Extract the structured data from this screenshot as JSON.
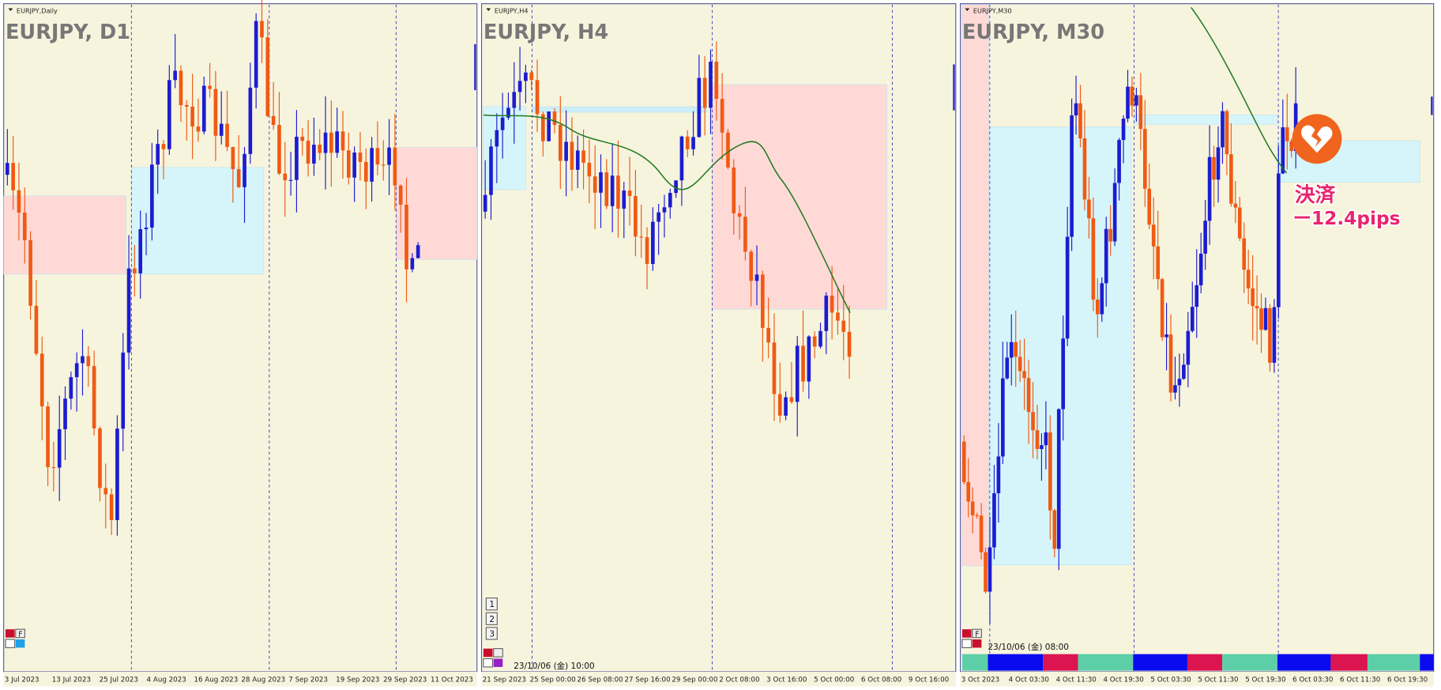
{
  "panels": [
    {
      "symbol_label": "EURJPY,Daily",
      "title": "EURJPY, D1",
      "button_label": "F",
      "time_labels": [
        "3 Jul 2023",
        "13 Jul 2023",
        "25 Jul 2023",
        "4 Aug 2023",
        "16 Aug 2023",
        "28 Aug 2023",
        "7 Sep 2023",
        "19 Sep 2023",
        "29 Sep 2023",
        "11 Oct 2023"
      ]
    },
    {
      "symbol_label": "EURJPY,H4",
      "title": "EURJPY, H4",
      "object_list": [
        "1",
        "2",
        "3"
      ],
      "crosshair_time": "23/10/06 (金) 10:00",
      "time_labels": [
        "21 Sep 2023",
        "25 Sep 00:00",
        "26 Sep 08:00",
        "27 Sep 16:00",
        "29 Sep 00:00",
        "2 Oct 08:00",
        "3 Oct 16:00",
        "5 Oct 00:00",
        "6 Oct 08:00",
        "9 Oct 16:00"
      ]
    },
    {
      "symbol_label": "EURJPY,M30",
      "title": "EURJPY, M30",
      "button_label": "F",
      "crosshair_time": "23/10/06 (金) 08:00",
      "annotation": {
        "label": "決済",
        "result": "ー12.4pips"
      },
      "time_labels": [
        "3 Oct 2023",
        "4 Oct 03:30",
        "4 Oct 11:30",
        "4 Oct 19:30",
        "5 Oct 03:30",
        "5 Oct 11:30",
        "5 Oct 19:30",
        "6 Oct 03:30",
        "6 Oct 11:30",
        "6 Oct 19:30"
      ]
    }
  ]
}
